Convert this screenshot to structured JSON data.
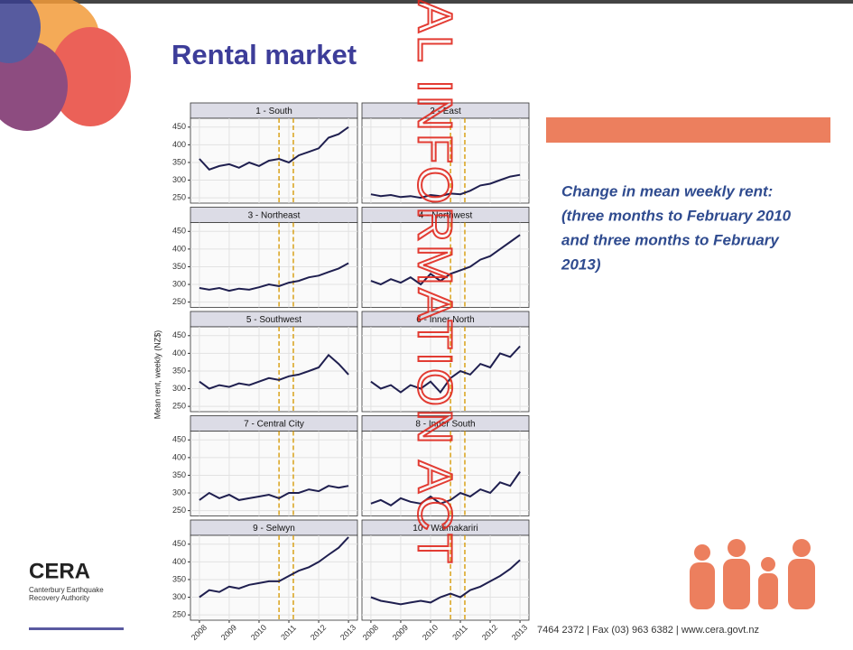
{
  "title": "Rental market",
  "description": [
    "Change in mean weekly rent:",
    "(three months to February 2010",
    "and three months to February",
    "2013)"
  ],
  "y_axis_label": "Mean rent, weekly (NZ$)",
  "logo": {
    "name": "CERA",
    "line1": "Canterbury Earthquake",
    "line2": "Recovery Authority"
  },
  "footer": "7464 2372  |  Fax (03) 963 6382  |  www.cera.govt.nz",
  "watermark": "AL INFORMATION ACT",
  "chart_data": [
    {
      "type": "line",
      "title": "1 - South",
      "color": "#1f1f4f",
      "x": [
        2008,
        2008.33,
        2008.67,
        2009,
        2009.33,
        2009.67,
        2010,
        2010.33,
        2010.67,
        2011,
        2011.33,
        2011.67,
        2012,
        2012.33,
        2012.67,
        2013
      ],
      "values": [
        360,
        330,
        340,
        345,
        335,
        350,
        340,
        355,
        360,
        350,
        370,
        380,
        390,
        420,
        430,
        450
      ],
      "xlim": [
        2007.7,
        2013.3
      ],
      "ylim": [
        235,
        475
      ],
      "xticks": [
        2008,
        2009,
        2010,
        2011,
        2012,
        2013
      ],
      "yticks": [
        250,
        300,
        350,
        400,
        450
      ],
      "vlines": [
        2010.67,
        2011.15
      ],
      "vline_color": "#d9a21b",
      "grid": true
    },
    {
      "type": "line",
      "title": "2 - East",
      "color": "#1f1f4f",
      "x": [
        2008,
        2008.33,
        2008.67,
        2009,
        2009.33,
        2009.67,
        2010,
        2010.33,
        2010.67,
        2011,
        2011.33,
        2011.67,
        2012,
        2012.33,
        2012.67,
        2013
      ],
      "values": [
        260,
        255,
        258,
        252,
        255,
        250,
        258,
        255,
        262,
        260,
        270,
        285,
        290,
        300,
        310,
        315
      ],
      "xlim": [
        2007.7,
        2013.3
      ],
      "ylim": [
        235,
        475
      ],
      "xticks": [
        2008,
        2009,
        2010,
        2011,
        2012,
        2013
      ],
      "yticks": [
        250,
        300,
        350,
        400,
        450
      ],
      "vlines": [
        2010.67,
        2011.15
      ],
      "vline_color": "#d9a21b",
      "grid": true
    },
    {
      "type": "line",
      "title": "3 - Northeast",
      "color": "#1f1f4f",
      "x": [
        2008,
        2008.33,
        2008.67,
        2009,
        2009.33,
        2009.67,
        2010,
        2010.33,
        2010.67,
        2011,
        2011.33,
        2011.67,
        2012,
        2012.33,
        2012.67,
        2013
      ],
      "values": [
        290,
        285,
        290,
        282,
        288,
        285,
        292,
        300,
        295,
        305,
        310,
        320,
        325,
        335,
        345,
        360
      ],
      "xlim": [
        2007.7,
        2013.3
      ],
      "ylim": [
        235,
        475
      ],
      "xticks": [
        2008,
        2009,
        2010,
        2011,
        2012,
        2013
      ],
      "yticks": [
        250,
        300,
        350,
        400,
        450
      ],
      "vlines": [
        2010.67,
        2011.15
      ],
      "vline_color": "#d9a21b",
      "grid": true
    },
    {
      "type": "line",
      "title": "4 - Northwest",
      "color": "#1f1f4f",
      "x": [
        2008,
        2008.33,
        2008.67,
        2009,
        2009.33,
        2009.67,
        2010,
        2010.33,
        2010.67,
        2011,
        2011.33,
        2011.67,
        2012,
        2012.33,
        2012.67,
        2013
      ],
      "values": [
        310,
        300,
        315,
        305,
        320,
        300,
        330,
        310,
        330,
        340,
        350,
        370,
        380,
        400,
        420,
        440
      ],
      "xlim": [
        2007.7,
        2013.3
      ],
      "ylim": [
        235,
        475
      ],
      "xticks": [
        2008,
        2009,
        2010,
        2011,
        2012,
        2013
      ],
      "yticks": [
        250,
        300,
        350,
        400,
        450
      ],
      "vlines": [
        2010.67,
        2011.15
      ],
      "vline_color": "#d9a21b",
      "grid": true
    },
    {
      "type": "line",
      "title": "5 - Southwest",
      "color": "#1f1f4f",
      "x": [
        2008,
        2008.33,
        2008.67,
        2009,
        2009.33,
        2009.67,
        2010,
        2010.33,
        2010.67,
        2011,
        2011.33,
        2011.67,
        2012,
        2012.33,
        2012.67,
        2013
      ],
      "values": [
        320,
        300,
        310,
        305,
        315,
        310,
        320,
        330,
        325,
        335,
        340,
        350,
        360,
        395,
        370,
        340
      ],
      "xlim": [
        2007.7,
        2013.3
      ],
      "ylim": [
        235,
        475
      ],
      "xticks": [
        2008,
        2009,
        2010,
        2011,
        2012,
        2013
      ],
      "yticks": [
        250,
        300,
        350,
        400,
        450
      ],
      "vlines": [
        2010.67,
        2011.15
      ],
      "vline_color": "#d9a21b",
      "grid": true
    },
    {
      "type": "line",
      "title": "6 - Inner North",
      "color": "#1f1f4f",
      "x": [
        2008,
        2008.33,
        2008.67,
        2009,
        2009.33,
        2009.67,
        2010,
        2010.33,
        2010.67,
        2011,
        2011.33,
        2011.67,
        2012,
        2012.33,
        2012.67,
        2013
      ],
      "values": [
        320,
        300,
        310,
        290,
        310,
        300,
        320,
        290,
        330,
        350,
        340,
        370,
        360,
        400,
        390,
        420
      ],
      "xlim": [
        2007.7,
        2013.3
      ],
      "ylim": [
        235,
        475
      ],
      "xticks": [
        2008,
        2009,
        2010,
        2011,
        2012,
        2013
      ],
      "yticks": [
        250,
        300,
        350,
        400,
        450
      ],
      "vlines": [
        2010.67,
        2011.15
      ],
      "vline_color": "#d9a21b",
      "grid": true
    },
    {
      "type": "line",
      "title": "7 - Central City",
      "color": "#1f1f4f",
      "x": [
        2008,
        2008.33,
        2008.67,
        2009,
        2009.33,
        2009.67,
        2010,
        2010.33,
        2010.67,
        2011,
        2011.33,
        2011.67,
        2012,
        2012.33,
        2012.67,
        2013
      ],
      "values": [
        280,
        300,
        285,
        295,
        280,
        285,
        290,
        295,
        285,
        300,
        300,
        310,
        305,
        320,
        315,
        320
      ],
      "xlim": [
        2007.7,
        2013.3
      ],
      "ylim": [
        235,
        475
      ],
      "xticks": [
        2008,
        2009,
        2010,
        2011,
        2012,
        2013
      ],
      "yticks": [
        250,
        300,
        350,
        400,
        450
      ],
      "vlines": [
        2010.67,
        2011.15
      ],
      "vline_color": "#d9a21b",
      "grid": true
    },
    {
      "type": "line",
      "title": "8 - Inner South",
      "color": "#1f1f4f",
      "x": [
        2008,
        2008.33,
        2008.67,
        2009,
        2009.33,
        2009.67,
        2010,
        2010.33,
        2010.67,
        2011,
        2011.33,
        2011.67,
        2012,
        2012.33,
        2012.67,
        2013
      ],
      "values": [
        270,
        280,
        265,
        285,
        275,
        270,
        290,
        270,
        280,
        300,
        290,
        310,
        300,
        330,
        320,
        360
      ],
      "xlim": [
        2007.7,
        2013.3
      ],
      "ylim": [
        235,
        475
      ],
      "xticks": [
        2008,
        2009,
        2010,
        2011,
        2012,
        2013
      ],
      "yticks": [
        250,
        300,
        350,
        400,
        450
      ],
      "vlines": [
        2010.67,
        2011.15
      ],
      "vline_color": "#d9a21b",
      "grid": true
    },
    {
      "type": "line",
      "title": "9 - Selwyn",
      "color": "#1f1f4f",
      "x": [
        2008,
        2008.33,
        2008.67,
        2009,
        2009.33,
        2009.67,
        2010,
        2010.33,
        2010.67,
        2011,
        2011.33,
        2011.67,
        2012,
        2012.33,
        2012.67,
        2013
      ],
      "values": [
        300,
        320,
        315,
        330,
        325,
        335,
        340,
        345,
        345,
        360,
        375,
        385,
        400,
        420,
        440,
        470
      ],
      "xlim": [
        2007.7,
        2013.3
      ],
      "ylim": [
        235,
        475
      ],
      "xticks": [
        2008,
        2009,
        2010,
        2011,
        2012,
        2013
      ],
      "yticks": [
        250,
        300,
        350,
        400,
        450
      ],
      "vlines": [
        2010.67,
        2011.15
      ],
      "vline_color": "#d9a21b",
      "grid": true
    },
    {
      "type": "line",
      "title": "10 - Waimakariri",
      "color": "#1f1f4f",
      "x": [
        2008,
        2008.33,
        2008.67,
        2009,
        2009.33,
        2009.67,
        2010,
        2010.33,
        2010.67,
        2011,
        2011.33,
        2011.67,
        2012,
        2012.33,
        2012.67,
        2013
      ],
      "values": [
        300,
        290,
        285,
        280,
        285,
        290,
        285,
        300,
        310,
        300,
        320,
        330,
        345,
        360,
        380,
        405
      ],
      "xlim": [
        2007.7,
        2013.3
      ],
      "ylim": [
        235,
        475
      ],
      "xticks": [
        2008,
        2009,
        2010,
        2011,
        2012,
        2013
      ],
      "yticks": [
        250,
        300,
        350,
        400,
        450
      ],
      "vlines": [
        2010.67,
        2011.15
      ],
      "vline_color": "#d9a21b",
      "grid": true
    }
  ]
}
